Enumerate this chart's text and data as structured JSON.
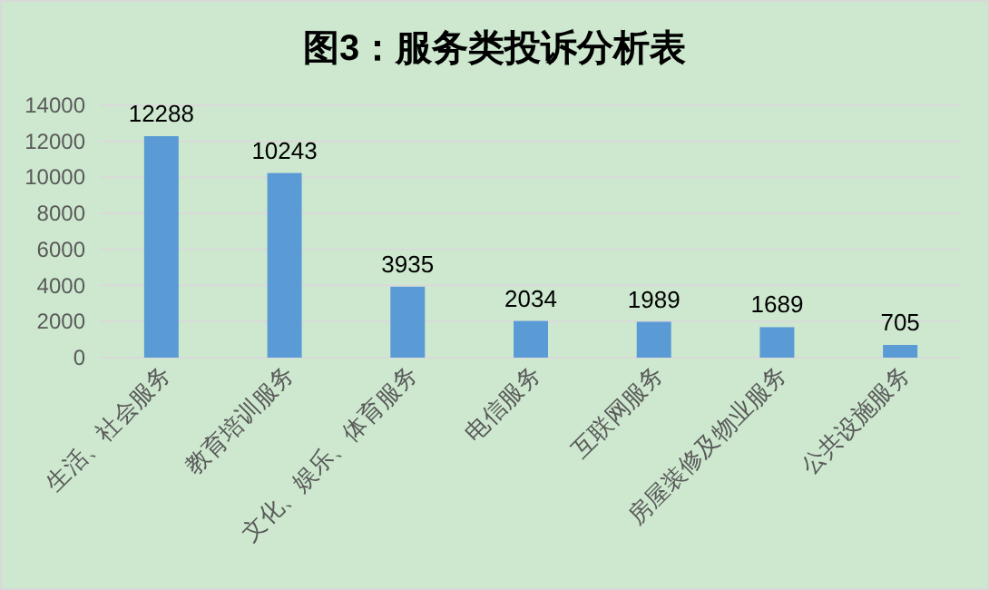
{
  "chart_data": {
    "type": "bar",
    "title": "图3：服务类投诉分析表",
    "categories": [
      "生活、社会服务",
      "教育培训服务",
      "文化、娱乐、体育服务",
      "电信服务",
      "互联网服务",
      "房屋装修及物业服务",
      "公共设施服务"
    ],
    "values": [
      12288,
      10243,
      3935,
      2034,
      1989,
      1689,
      705
    ],
    "color": "#5b9bd5",
    "ylim": [
      0,
      14000
    ],
    "yticks": [
      0,
      2000,
      4000,
      6000,
      8000,
      10000,
      12000,
      14000
    ],
    "grid": "y",
    "data_labels": true
  }
}
